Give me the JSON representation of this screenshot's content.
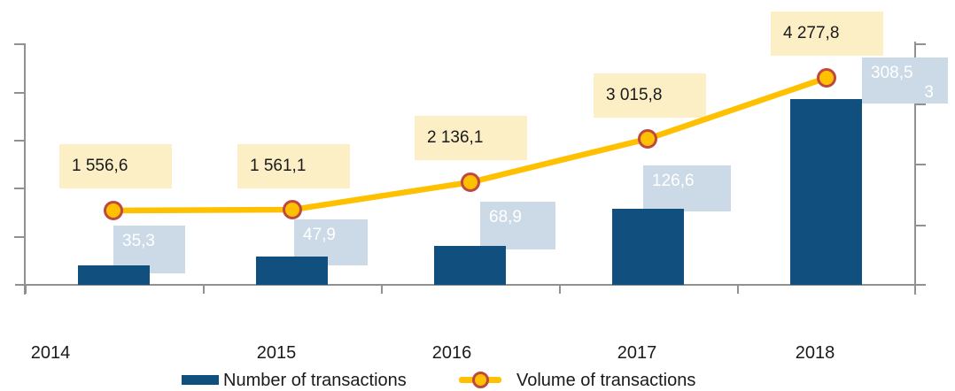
{
  "legend": {
    "bars_label": "Number of transactions",
    "line_label": "Volume of transactions"
  },
  "labels": {
    "volume": [
      "1 556,6",
      "1 561,1",
      "2 136,1",
      "3 015,8",
      "4 277,8"
    ],
    "bars": [
      {
        "line1": "35,3",
        "line2": ""
      },
      {
        "line1": "47,9",
        "line2": ""
      },
      {
        "line1": "68,9",
        "line2": ""
      },
      {
        "line1": "126,6",
        "line2": ""
      },
      {
        "line1": "308,5",
        "line2": "3"
      }
    ]
  },
  "colors": {
    "bar": "#11507E",
    "line": "#FFC000",
    "marker_fill": "#FFC000",
    "marker_stroke": "#BF4941",
    "volume_label_bg": "#FCEFC6",
    "bar_label_bg": "#CCDAE7",
    "bar_label_text": "#FFFFFF",
    "axis": "#919191",
    "text": "#1A1A1A"
  },
  "chart_data": {
    "type": "combo",
    "categories": [
      "2014",
      "2015",
      "2016",
      "2017",
      "2018"
    ],
    "series": [
      {
        "name": "Number of transactions",
        "type": "bar",
        "values": [
          35.3,
          47.9,
          68.9,
          126.6,
          308.53
        ],
        "data_labels": [
          "35,3",
          "47,9",
          "68,9",
          "126,6",
          "308,53"
        ],
        "color": "#11507E",
        "label_bg": "#CCDAE7"
      },
      {
        "name": "Volume of transactions",
        "type": "line",
        "values": [
          1556.6,
          1561.1,
          2136.1,
          3015.8,
          4277.8
        ],
        "data_labels": [
          "1 556,6",
          "1 561,1",
          "2 136,1",
          "3 015,8",
          "4 277,8"
        ],
        "color": "#FFC000",
        "marker": "circle",
        "marker_stroke": "#BF4941",
        "label_bg": "#FCEFC6"
      }
    ],
    "axes": {
      "left_y": {
        "tick_labels": [],
        "ticks": 6,
        "gridlines": false
      },
      "right_y": {
        "tick_labels": [],
        "ticks": 5,
        "gridlines": false
      },
      "x": {
        "tick_marks": "between-categories"
      }
    },
    "legend_position": "bottom",
    "title": ""
  }
}
